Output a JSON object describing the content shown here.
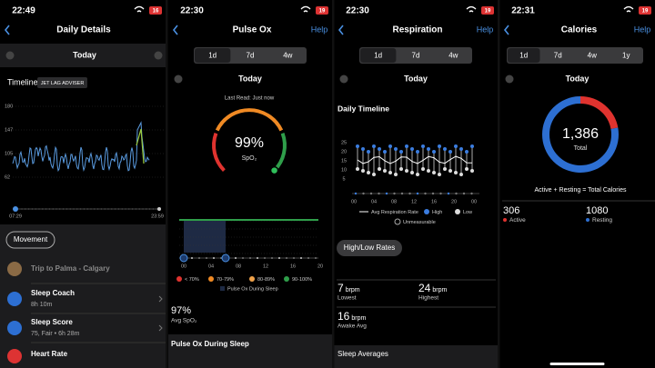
{
  "panels": [
    {
      "time": "22:49",
      "battery": "16",
      "title": "Daily Details",
      "date": "Today",
      "timeline": "Timeline",
      "badge": "JET LAG ADVISER",
      "yticks": [
        180,
        147,
        105,
        62
      ],
      "start": "07:29",
      "end": "23:59",
      "movement": "Movement",
      "items": [
        {
          "title": "Trip to Palma - Calgary"
        },
        {
          "title": "Sleep Coach",
          "detail": "8h 10m"
        },
        {
          "title": "Sleep Score",
          "detail": "75, Fair • 6h 28m"
        },
        {
          "title": "Heart Rate"
        }
      ]
    },
    {
      "time": "22:30",
      "battery": "19",
      "title": "Pulse Ox",
      "help": "Help",
      "tabs": [
        "1d",
        "7d",
        "4w"
      ],
      "date": "Today",
      "last_read": "Last Read: Just now",
      "value": "99%",
      "unit": "SpO₂",
      "xticks": [
        "00",
        "04",
        "08",
        "12",
        "16",
        "20"
      ],
      "legend": [
        "< 70%",
        "70-79%",
        "80-89%",
        "90-100%"
      ],
      "sleep_legend": "Pulse Ox During Sleep",
      "avg": "97%",
      "avg_label": "Avg SpO₂",
      "section": "Pulse Ox During Sleep"
    },
    {
      "time": "22:30",
      "battery": "19",
      "title": "Respiration",
      "help": "Help",
      "tabs": [
        "1d",
        "7d",
        "4w"
      ],
      "date": "Today",
      "chart_title": "Daily Timeline",
      "yticks": [
        25,
        20,
        15,
        10,
        5
      ],
      "xticks": [
        "00",
        "04",
        "08",
        "12",
        "16",
        "20",
        "00"
      ],
      "legend": [
        "Avg Respiration Rate",
        "High",
        "Low",
        "Unmeasurable"
      ],
      "button": "High/Low Rates",
      "stats": [
        {
          "value": 7,
          "unit": "brpm",
          "label": "Lowest"
        },
        {
          "value": 24,
          "unit": "brpm",
          "label": "Highest"
        },
        {
          "value": 16,
          "unit": "brpm",
          "label": "Awake Avg"
        }
      ],
      "section": "Sleep Averages"
    },
    {
      "time": "22:31",
      "battery": "19",
      "title": "Calories",
      "help": "Help",
      "tabs": [
        "1d",
        "7d",
        "4w",
        "1y"
      ],
      "date": "Today",
      "total": "1,386",
      "total_label": "Total",
      "equation": "Active + Resting = Total Calories",
      "active": {
        "value": 306,
        "label": "Active"
      },
      "resting": {
        "value": 1080,
        "label": "Resting"
      }
    }
  ]
}
